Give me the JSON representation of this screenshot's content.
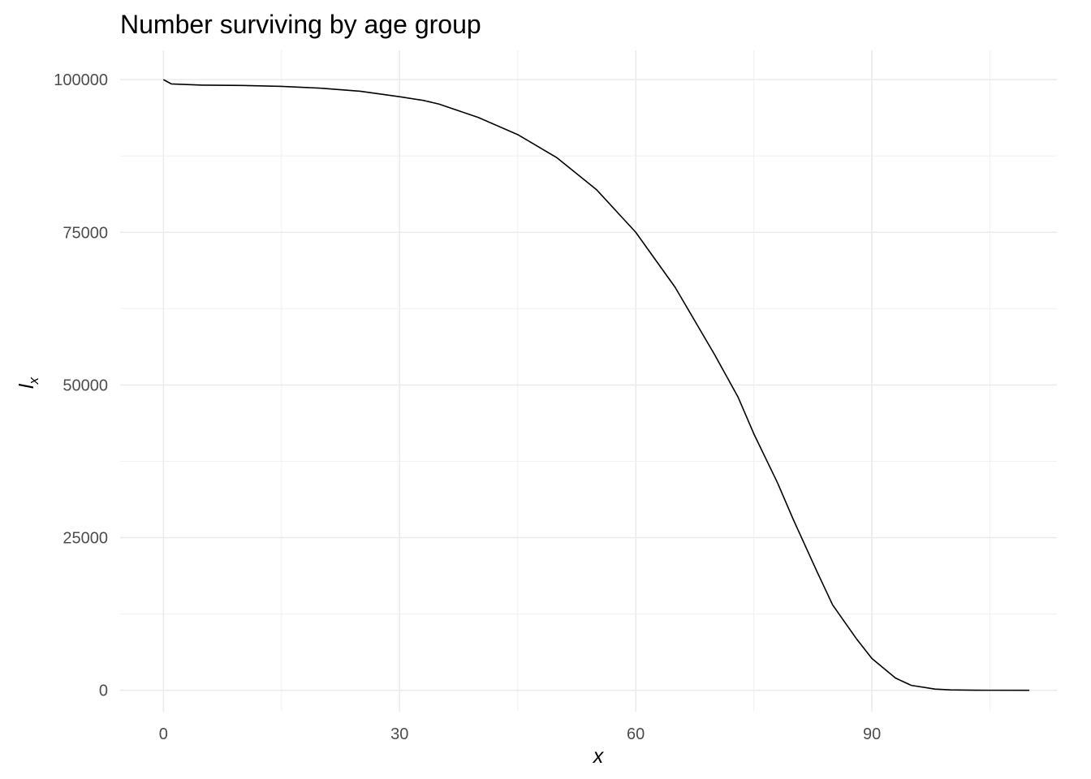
{
  "chart_data": {
    "type": "line",
    "title": "Number surviving by age group",
    "xlabel": "x",
    "ylabel": {
      "base": "l",
      "subscript": "x"
    },
    "xlim": [
      -5.5,
      113.5
    ],
    "ylim": [
      -3500,
      104800
    ],
    "x_ticks": [
      {
        "value": 0,
        "label": "0"
      },
      {
        "value": 30,
        "label": "30"
      },
      {
        "value": 60,
        "label": "60"
      },
      {
        "value": 90,
        "label": "90"
      }
    ],
    "x_minor": [
      15,
      45,
      75,
      105
    ],
    "y_ticks": [
      {
        "value": 0,
        "label": "0"
      },
      {
        "value": 25000,
        "label": "25000"
      },
      {
        "value": 50000,
        "label": "50000"
      },
      {
        "value": 75000,
        "label": "75000"
      },
      {
        "value": 100000,
        "label": "100000"
      }
    ],
    "y_minor": [
      12500,
      37500,
      62500,
      87500
    ],
    "grid": true,
    "series": [
      {
        "color": "#000000",
        "x": [
          0,
          1,
          5,
          10,
          15,
          20,
          25,
          30,
          33,
          35,
          40,
          45,
          50,
          55,
          60,
          65,
          70,
          73,
          75,
          78,
          80,
          83,
          85,
          88,
          90,
          93,
          95,
          98,
          100,
          103,
          105,
          110
        ],
        "values": [
          100000,
          99300,
          99100,
          99050,
          98900,
          98600,
          98100,
          97200,
          96600,
          96000,
          93800,
          91000,
          87200,
          82000,
          75000,
          66000,
          55000,
          48000,
          42000,
          34000,
          28000,
          19500,
          14000,
          8500,
          5200,
          2000,
          800,
          200,
          60,
          15,
          5,
          0
        ]
      }
    ]
  }
}
